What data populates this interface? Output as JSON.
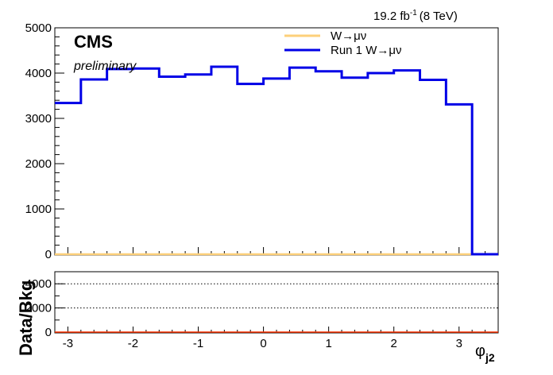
{
  "chart_data": [
    {
      "type": "line",
      "step": true,
      "xlim": [
        -3.2,
        3.6
      ],
      "ylim": [
        0,
        5000
      ],
      "yticks": [
        "0",
        "1000",
        "2000",
        "3000",
        "4000",
        "5000"
      ],
      "x_edges": [
        -3.2,
        -2.8,
        -2.4,
        -2.0,
        -1.6,
        -1.2,
        -0.8,
        -0.4,
        0.0,
        0.4,
        0.8,
        1.2,
        1.6,
        2.0,
        2.4,
        2.8,
        3.2,
        3.6
      ],
      "series": [
        {
          "name": "W→μν",
          "color": "#fdd07a",
          "values": [
            0,
            0,
            0,
            0,
            0,
            0,
            0,
            0,
            0,
            0,
            0,
            0,
            0,
            0,
            0,
            0,
            0
          ]
        },
        {
          "name": "Run 1 W→μν",
          "color": "#0000e6",
          "values": [
            3340,
            3860,
            4090,
            4100,
            3920,
            3970,
            4140,
            3760,
            3880,
            4120,
            4040,
            3900,
            4000,
            4060,
            3850,
            3310,
            0
          ]
        }
      ]
    },
    {
      "type": "line",
      "xlim": [
        -3.2,
        3.6
      ],
      "ylim": [
        0,
        5000
      ],
      "yticks": [
        "0",
        "2000",
        "4000"
      ],
      "gridlines": [
        2000,
        4000
      ],
      "ylabel": "Data/Bkg",
      "xlabel_main": "φ",
      "xlabel_sub": "j2",
      "xticks": [
        "-3",
        "-2",
        "-1",
        "0",
        "1",
        "2",
        "3"
      ],
      "xtick_values": [
        -3,
        -2,
        -1,
        0,
        1,
        2,
        3
      ],
      "baseline_color": "#ff3300"
    }
  ],
  "header": {
    "cms": "CMS",
    "preliminary": "preliminary",
    "lumi_main": "19.2 fb",
    "lumi_sup": "-1",
    "lumi_energy": "(8 TeV)"
  }
}
